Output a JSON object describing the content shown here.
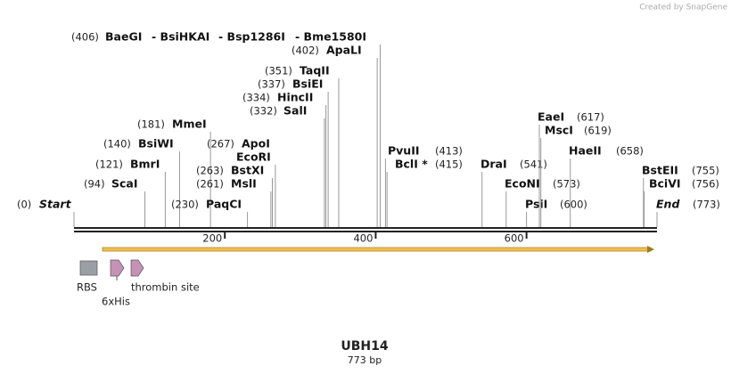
{
  "credit": "Created by SnapGene",
  "title": "UBH14",
  "subtitle": "773 bp",
  "length": 773,
  "ruler_ticks": [
    200,
    400,
    600
  ],
  "features": [
    {
      "label": "RBS"
    },
    {
      "label": "6xHis"
    },
    {
      "label": "thrombin site"
    }
  ],
  "sites": [
    {
      "names": [
        "Start"
      ],
      "position": {
        "value": 0,
        "label": "(0)"
      }
    },
    {
      "names": [
        "ScaI"
      ],
      "position": {
        "value": 94,
        "label": "(94)"
      }
    },
    {
      "names": [
        "BmrI"
      ],
      "position": {
        "value": 121,
        "label": "(121)"
      }
    },
    {
      "names": [
        "BsiWI"
      ],
      "position": {
        "value": 140,
        "label": "(140)"
      }
    },
    {
      "names": [
        "MmeI"
      ],
      "position": {
        "value": 181,
        "label": "(181)"
      }
    },
    {
      "names": [
        "PaqCI"
      ],
      "position": {
        "value": 230,
        "label": "(230)"
      }
    },
    {
      "names": [
        "MslI"
      ],
      "position": {
        "value": 261,
        "label": "(261)"
      }
    },
    {
      "names": [
        "BstXI"
      ],
      "position": {
        "value": 263,
        "label": "(263)"
      }
    },
    {
      "names": [
        "ApoI",
        "EcoRI"
      ],
      "position": {
        "value": 267,
        "label": "(267)"
      }
    },
    {
      "names": [
        "SalI"
      ],
      "position": {
        "value": 332,
        "label": "(332)"
      }
    },
    {
      "names": [
        "HincII"
      ],
      "position": {
        "value": 334,
        "label": "(334)"
      }
    },
    {
      "names": [
        "BsiEI"
      ],
      "position": {
        "value": 337,
        "label": "(337)"
      }
    },
    {
      "names": [
        "TaqII"
      ],
      "position": {
        "value": 351,
        "label": "(351)"
      }
    },
    {
      "names": [
        "ApaLI"
      ],
      "position": {
        "value": 402,
        "label": "(402)"
      }
    },
    {
      "names": [
        "BaeGI",
        "- BsiHKAI",
        "- Bsp1286I",
        "- Bme1580I"
      ],
      "position": {
        "value": 406,
        "label": "(406)"
      }
    },
    {
      "names": [
        "PvuII"
      ],
      "position": {
        "value": 413,
        "label": "(413)"
      }
    },
    {
      "names": [
        "BclI *"
      ],
      "position": {
        "value": 415,
        "label": "(415)"
      }
    },
    {
      "names": [
        "DraI"
      ],
      "position": {
        "value": 541,
        "label": "(541)"
      }
    },
    {
      "names": [
        "EcoNI"
      ],
      "position": {
        "value": 573,
        "label": "(573)"
      }
    },
    {
      "names": [
        "PsiI"
      ],
      "position": {
        "value": 600,
        "label": "(600)"
      }
    },
    {
      "names": [
        "EaeI"
      ],
      "position": {
        "value": 617,
        "label": "(617)"
      }
    },
    {
      "names": [
        "MscI"
      ],
      "position": {
        "value": 619,
        "label": "(619)"
      }
    },
    {
      "names": [
        "HaeII"
      ],
      "position": {
        "value": 658,
        "label": "(658)"
      }
    },
    {
      "names": [
        "BstEII"
      ],
      "position": {
        "value": 755,
        "label": "(755)"
      }
    },
    {
      "names": [
        "BciVI"
      ],
      "position": {
        "value": 756,
        "label": "(756)"
      }
    },
    {
      "names": [
        "End"
      ],
      "position": {
        "value": 773,
        "label": "(773)"
      }
    }
  ]
}
